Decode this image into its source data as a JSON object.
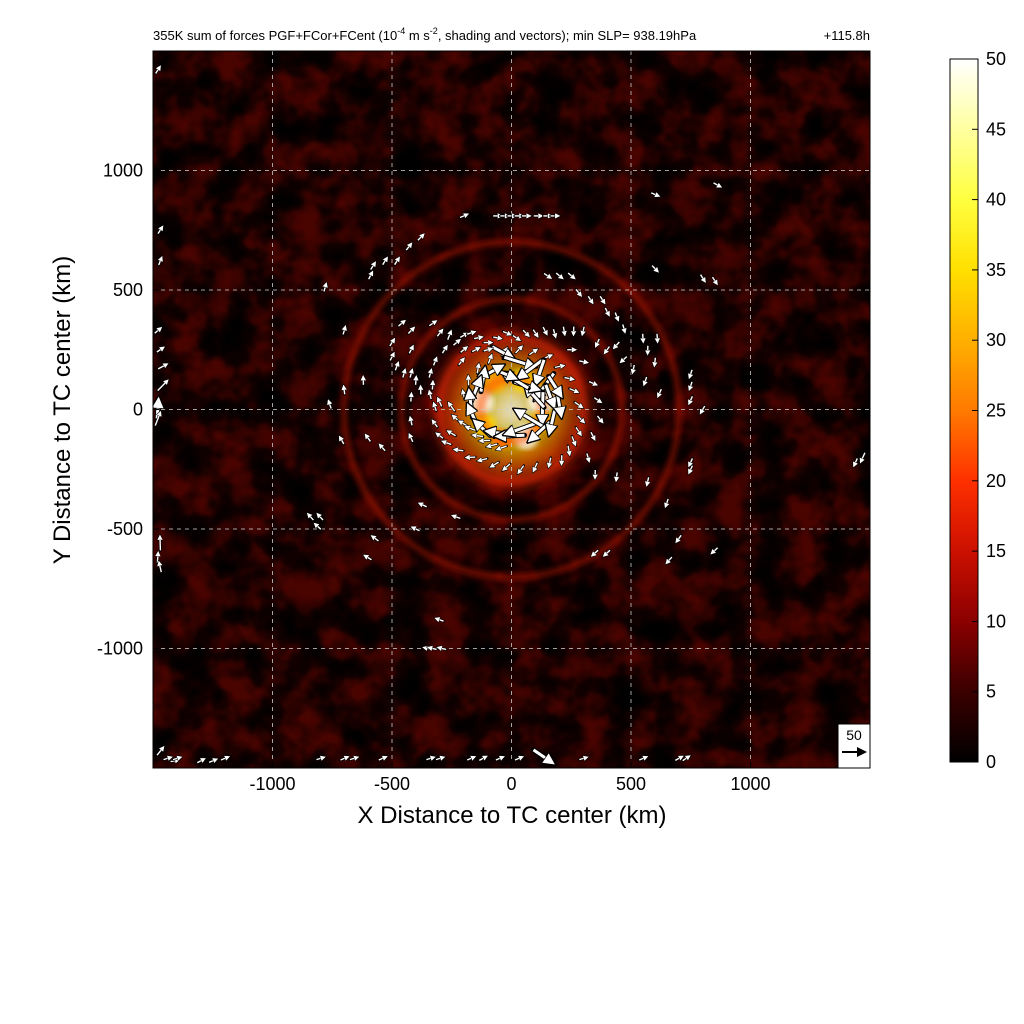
{
  "chart_data": {
    "type": "heatmap",
    "title_parts": {
      "main": "355K sum of forces PGF+FCor+FCent (10",
      "unit_exp": "-4",
      "mid": " m s",
      "unit_exp2": "-2",
      "end": ", shading and vectors); min SLP= 938.19hPa",
      "time": "+115.8h"
    },
    "xlabel": "X Distance to TC center (km)",
    "ylabel": "Y Distance to TC center (km)",
    "xlim": [
      -1500,
      1500
    ],
    "ylim": [
      -1500,
      1500
    ],
    "xticks": [
      -1000,
      -500,
      0,
      500,
      1000
    ],
    "yticks": [
      -1000,
      -500,
      0,
      500,
      1000
    ],
    "grid": true,
    "colorbar": {
      "range": [
        0,
        50
      ],
      "ticks": [
        0,
        5,
        10,
        15,
        20,
        25,
        30,
        35,
        40,
        45,
        50
      ],
      "colors": [
        "#000000",
        "#3a0000",
        "#8b0000",
        "#cc1000",
        "#ff3000",
        "#ff7a00",
        "#ffb000",
        "#ffe000",
        "#ffff40",
        "#ffffa0",
        "#ffffff"
      ]
    },
    "reference_vector": {
      "label": "50",
      "magnitude": 50
    },
    "field_features": {
      "eyewall_radius_km": 130,
      "ring_radii_km": [
        300,
        460,
        700
      ],
      "background_level": 6,
      "eyewall_peak": 50
    },
    "vectors_km": [
      [
        -460,
        360,
        0.7,
        8
      ],
      [
        -420,
        330,
        0.8,
        8
      ],
      [
        -330,
        360,
        0.6,
        8
      ],
      [
        -300,
        320,
        0.9,
        8
      ],
      [
        -260,
        310,
        1.2,
        9
      ],
      [
        -230,
        280,
        0.7,
        8
      ],
      [
        -200,
        310,
        0.5,
        8
      ],
      [
        -170,
        320,
        0.3,
        8
      ],
      [
        -140,
        300,
        0.2,
        8
      ],
      [
        -100,
        280,
        0.0,
        8
      ],
      [
        -60,
        300,
        -0.2,
        8
      ],
      [
        -20,
        320,
        -0.4,
        8
      ],
      [
        20,
        300,
        -0.6,
        8
      ],
      [
        60,
        320,
        -0.8,
        8
      ],
      [
        100,
        320,
        -1.0,
        8
      ],
      [
        140,
        330,
        -1.1,
        8
      ],
      [
        180,
        320,
        -1.3,
        8
      ],
      [
        220,
        330,
        -1.4,
        8
      ],
      [
        260,
        330,
        -1.6,
        8
      ],
      [
        300,
        330,
        -1.8,
        8
      ],
      [
        360,
        280,
        -2.0,
        8
      ],
      [
        400,
        250,
        -2.2,
        8
      ],
      [
        440,
        270,
        -2.3,
        8
      ],
      [
        470,
        210,
        -2.4,
        8
      ],
      [
        -500,
        280,
        1.0,
        8
      ],
      [
        -500,
        220,
        1.1,
        8
      ],
      [
        -480,
        180,
        1.2,
        8
      ],
      [
        -450,
        150,
        1.3,
        8
      ],
      [
        -400,
        120,
        1.5,
        8
      ],
      [
        -380,
        80,
        1.6,
        8
      ],
      [
        -340,
        60,
        1.8,
        8
      ],
      [
        -300,
        30,
        2.0,
        9
      ],
      [
        -250,
        10,
        2.2,
        10
      ],
      [
        -230,
        -40,
        2.4,
        10
      ],
      [
        -200,
        -60,
        2.6,
        10
      ],
      [
        -170,
        -80,
        2.8,
        10
      ],
      [
        -140,
        -110,
        3.0,
        10
      ],
      [
        -110,
        -130,
        3.2,
        10
      ],
      [
        -80,
        -150,
        3.4,
        10
      ],
      [
        -40,
        -160,
        -2.8,
        10
      ],
      [
        -250,
        -100,
        2.6,
        9
      ],
      [
        -270,
        -140,
        2.8,
        9
      ],
      [
        -220,
        -170,
        3.0,
        9
      ],
      [
        -170,
        -200,
        3.2,
        9
      ],
      [
        -120,
        -210,
        -2.9,
        9
      ],
      [
        -70,
        -230,
        -2.6,
        9
      ],
      [
        -20,
        -240,
        -2.4,
        9
      ],
      [
        40,
        -250,
        -2.2,
        9
      ],
      [
        100,
        -240,
        -2.0,
        9
      ],
      [
        160,
        -220,
        -1.8,
        9
      ],
      [
        210,
        -210,
        -1.6,
        9
      ],
      [
        240,
        -170,
        -1.4,
        9
      ],
      [
        260,
        -130,
        -1.2,
        9
      ],
      [
        280,
        -90,
        -1.0,
        9
      ],
      [
        290,
        -40,
        -0.8,
        9
      ],
      [
        280,
        20,
        -0.6,
        9
      ],
      [
        260,
        80,
        -0.4,
        9
      ],
      [
        240,
        130,
        -0.2,
        9
      ],
      [
        200,
        180,
        0.2,
        9
      ],
      [
        150,
        220,
        0.4,
        9
      ],
      [
        90,
        240,
        0.6,
        9
      ],
      [
        30,
        250,
        0.8,
        9
      ],
      [
        -30,
        240,
        1.0,
        9
      ],
      [
        -90,
        210,
        1.2,
        9
      ],
      [
        -140,
        170,
        1.4,
        9
      ],
      [
        -180,
        120,
        1.6,
        9
      ],
      [
        -200,
        60,
        1.8,
        9
      ],
      [
        -40,
        240,
        -0.5,
        22
      ],
      [
        30,
        200,
        -0.3,
        30
      ],
      [
        80,
        170,
        -2.5,
        28
      ],
      [
        120,
        160,
        -1.9,
        24
      ],
      [
        140,
        100,
        -2.2,
        30
      ],
      [
        160,
        60,
        -1.2,
        22
      ],
      [
        130,
        10,
        -1.6,
        30
      ],
      [
        100,
        50,
        2.3,
        26
      ],
      [
        60,
        100,
        -0.3,
        24
      ],
      [
        20,
        120,
        2.6,
        28
      ],
      [
        -30,
        150,
        -0.4,
        22
      ],
      [
        -80,
        160,
        0.5,
        20
      ],
      [
        -120,
        120,
        1.4,
        22
      ],
      [
        -150,
        80,
        1.2,
        24
      ],
      [
        -170,
        20,
        1.7,
        26
      ],
      [
        -160,
        -30,
        2.0,
        22
      ],
      [
        -120,
        -80,
        2.4,
        20
      ],
      [
        -40,
        -100,
        3.0,
        28
      ],
      [
        0,
        -110,
        -3.1,
        26
      ],
      [
        40,
        -80,
        -2.8,
        30
      ],
      [
        80,
        -40,
        2.6,
        32
      ],
      [
        120,
        -90,
        -2.4,
        26
      ],
      [
        170,
        -50,
        -1.8,
        22
      ],
      [
        200,
        20,
        -1.4,
        20
      ],
      [
        180,
        100,
        -1.0,
        22
      ],
      [
        -210,
        200,
        0.9,
        8
      ],
      [
        -200,
        250,
        0.7,
        8
      ],
      [
        -150,
        250,
        0.5,
        8
      ],
      [
        -100,
        250,
        0.3,
        8
      ],
      [
        -280,
        250,
        1.0,
        8
      ],
      [
        -320,
        200,
        1.2,
        8
      ],
      [
        -340,
        150,
        1.3,
        8
      ],
      [
        -330,
        100,
        1.5,
        8
      ],
      [
        -320,
        10,
        1.9,
        8
      ],
      [
        -320,
        -60,
        2.2,
        8
      ],
      [
        -300,
        -110,
        2.5,
        8
      ],
      [
        320,
        -200,
        -1.3,
        8
      ],
      [
        340,
        -110,
        -1.1,
        8
      ],
      [
        370,
        -40,
        -0.9,
        8
      ],
      [
        360,
        40,
        -0.6,
        8
      ],
      [
        340,
        110,
        -0.4,
        8
      ],
      [
        300,
        200,
        -0.2,
        8
      ],
      [
        250,
        250,
        0.0,
        8
      ],
      [
        -60,
        810,
        0.0,
        8
      ],
      [
        -30,
        810,
        0.0,
        8
      ],
      [
        0,
        810,
        0.0,
        8
      ],
      [
        30,
        810,
        0.0,
        8
      ],
      [
        60,
        810,
        0.0,
        8
      ],
      [
        110,
        810,
        0.0,
        8
      ],
      [
        150,
        810,
        0.0,
        8
      ],
      [
        180,
        810,
        0.0,
        8
      ],
      [
        -200,
        810,
        0.4,
        8
      ],
      [
        -380,
        720,
        0.8,
        8
      ],
      [
        -430,
        680,
        0.9,
        8
      ],
      [
        -480,
        620,
        1.0,
        8
      ],
      [
        -530,
        620,
        1.0,
        8
      ],
      [
        -590,
        560,
        1.1,
        8
      ],
      [
        -780,
        510,
        1.3,
        8
      ],
      [
        150,
        560,
        -0.6,
        8
      ],
      [
        200,
        560,
        -0.7,
        8
      ],
      [
        250,
        560,
        -0.7,
        8
      ],
      [
        280,
        490,
        -0.9,
        8
      ],
      [
        330,
        460,
        -1.0,
        8
      ],
      [
        380,
        460,
        -1.0,
        8
      ],
      [
        400,
        410,
        -1.1,
        8
      ],
      [
        440,
        390,
        -1.2,
        8
      ],
      [
        470,
        340,
        -1.3,
        8
      ],
      [
        610,
        300,
        -1.5,
        8
      ],
      [
        550,
        300,
        -1.5,
        8
      ],
      [
        570,
        250,
        -1.6,
        8
      ],
      [
        600,
        200,
        -1.7,
        8
      ],
      [
        510,
        170,
        -1.8,
        8
      ],
      [
        560,
        120,
        -1.9,
        8
      ],
      [
        620,
        70,
        -2.0,
        8
      ],
      [
        750,
        150,
        -1.9,
        8
      ],
      [
        750,
        100,
        -1.9,
        8
      ],
      [
        750,
        40,
        -2.0,
        8
      ],
      [
        800,
        0,
        -2.1,
        8
      ],
      [
        -620,
        120,
        1.6,
        8
      ],
      [
        -700,
        80,
        1.7,
        8
      ],
      [
        -760,
        20,
        1.9,
        8
      ],
      [
        -600,
        -120,
        2.2,
        8
      ],
      [
        -540,
        -160,
        2.3,
        8
      ],
      [
        -420,
        250,
        1.1,
        8
      ],
      [
        -420,
        150,
        1.3,
        8
      ],
      [
        -420,
        50,
        1.5,
        8
      ],
      [
        -420,
        -50,
        1.8,
        8
      ],
      [
        -420,
        -120,
        2.0,
        8
      ],
      [
        350,
        -270,
        -1.6,
        8
      ],
      [
        440,
        -280,
        -1.7,
        8
      ],
      [
        570,
        -300,
        -1.8,
        8
      ],
      [
        650,
        -390,
        -1.9,
        8
      ],
      [
        750,
        -220,
        -2.0,
        8
      ],
      [
        750,
        -250,
        -2.0,
        8
      ],
      [
        700,
        -540,
        -2.2,
        8
      ],
      [
        660,
        -630,
        -2.3,
        8
      ],
      [
        850,
        -590,
        -2.4,
        8
      ],
      [
        -800,
        -450,
        2.3,
        8
      ],
      [
        -840,
        -450,
        2.3,
        8
      ],
      [
        -810,
        -490,
        2.4,
        8
      ],
      [
        -570,
        -540,
        2.5,
        8
      ],
      [
        -600,
        -620,
        2.6,
        8
      ],
      [
        -230,
        -450,
        2.8,
        8
      ],
      [
        -370,
        -400,
        2.7,
        8
      ],
      [
        -400,
        -500,
        2.7,
        8
      ],
      [
        350,
        -600,
        -2.4,
        8
      ],
      [
        400,
        -600,
        -2.4,
        8
      ],
      [
        -290,
        -1000,
        2.9,
        8
      ],
      [
        -350,
        -1000,
        2.9,
        8
      ],
      [
        -330,
        -1000,
        2.9,
        8
      ],
      [
        600,
        590,
        -0.8,
        8
      ],
      [
        800,
        550,
        -1.0,
        8
      ],
      [
        850,
        540,
        -1.0,
        8
      ],
      [
        860,
        940,
        -0.5,
        8
      ],
      [
        600,
        900,
        -0.4,
        8
      ],
      [
        -580,
        600,
        1.0,
        8
      ],
      [
        -700,
        330,
        1.3,
        8
      ],
      [
        -710,
        -130,
        2.1,
        8
      ],
      [
        -300,
        -880,
        2.8,
        8
      ],
      [
        130,
        -1450,
        -0.6,
        22
      ],
      [
        -1480,
        1420,
        1.0,
        8
      ],
      [
        -1470,
        750,
        1.0,
        8
      ],
      [
        -1470,
        620,
        1.2,
        8
      ],
      [
        -1460,
        100,
        0.8,
        14
      ],
      [
        -1480,
        0,
        1.5,
        18
      ],
      [
        -1480,
        -40,
        1.2,
        14
      ],
      [
        -1470,
        -560,
        1.6,
        14
      ],
      [
        -1480,
        -620,
        1.5,
        10
      ],
      [
        -1470,
        -660,
        1.8,
        10
      ],
      [
        -1460,
        180,
        0.5,
        10
      ],
      [
        -1470,
        250,
        0.6,
        8
      ],
      [
        -1480,
        330,
        0.7,
        8
      ],
      [
        -1470,
        -1430,
        0.9,
        10
      ],
      [
        -1440,
        -1460,
        0.3,
        8
      ],
      [
        -1410,
        -1470,
        0.2,
        8
      ],
      [
        -1400,
        -1460,
        0.3,
        8
      ],
      [
        -1300,
        -1470,
        0.5,
        8
      ],
      [
        -1250,
        -1470,
        0.4,
        8
      ],
      [
        -1200,
        -1460,
        0.4,
        8
      ],
      [
        -800,
        -1460,
        0.3,
        8
      ],
      [
        -660,
        -1460,
        0.3,
        8
      ],
      [
        -540,
        -1460,
        0.4,
        8
      ],
      [
        -340,
        -1460,
        0.3,
        8
      ],
      [
        -300,
        -1460,
        0.3,
        8
      ],
      [
        -170,
        -1460,
        0.4,
        8
      ],
      [
        -120,
        -1460,
        0.5,
        8
      ],
      [
        -50,
        -1460,
        0.4,
        8
      ],
      [
        30,
        -1460,
        0.4,
        8
      ],
      [
        300,
        -1460,
        0.3,
        8
      ],
      [
        550,
        -1460,
        0.4,
        8
      ],
      [
        700,
        -1460,
        0.5,
        8
      ],
      [
        730,
        -1460,
        0.6,
        8
      ],
      [
        -700,
        -1460,
        0.4,
        8
      ],
      [
        1470,
        -200,
        -2.0,
        10
      ],
      [
        1440,
        -220,
        -2.0,
        8
      ]
    ]
  }
}
